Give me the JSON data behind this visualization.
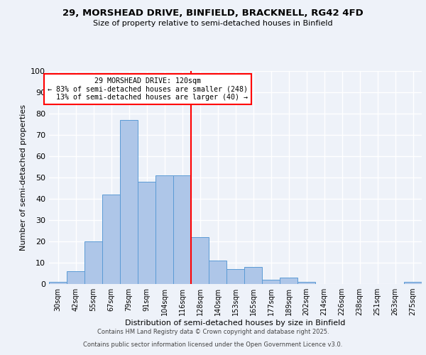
{
  "title1": "29, MORSHEAD DRIVE, BINFIELD, BRACKNELL, RG42 4FD",
  "title2": "Size of property relative to semi-detached houses in Binfield",
  "xlabel": "Distribution of semi-detached houses by size in Binfield",
  "ylabel": "Number of semi-detached properties",
  "categories": [
    "30sqm",
    "42sqm",
    "55sqm",
    "67sqm",
    "79sqm",
    "91sqm",
    "104sqm",
    "116sqm",
    "128sqm",
    "140sqm",
    "153sqm",
    "165sqm",
    "177sqm",
    "189sqm",
    "202sqm",
    "214sqm",
    "226sqm",
    "238sqm",
    "251sqm",
    "263sqm",
    "275sqm"
  ],
  "values": [
    1,
    6,
    20,
    42,
    77,
    48,
    51,
    51,
    22,
    11,
    7,
    8,
    2,
    3,
    1,
    0,
    0,
    0,
    0,
    0,
    1
  ],
  "bar_color": "#aec6e8",
  "bar_edge_color": "#5b9bd5",
  "pct_smaller": 83,
  "n_smaller": 248,
  "pct_larger": 13,
  "n_larger": 40,
  "ylim": [
    0,
    100
  ],
  "yticks": [
    0,
    10,
    20,
    30,
    40,
    50,
    60,
    70,
    80,
    90,
    100
  ],
  "footer1": "Contains HM Land Registry data © Crown copyright and database right 2025.",
  "footer2": "Contains public sector information licensed under the Open Government Licence v3.0.",
  "bg_color": "#eef2f9",
  "grid_color": "#ffffff"
}
